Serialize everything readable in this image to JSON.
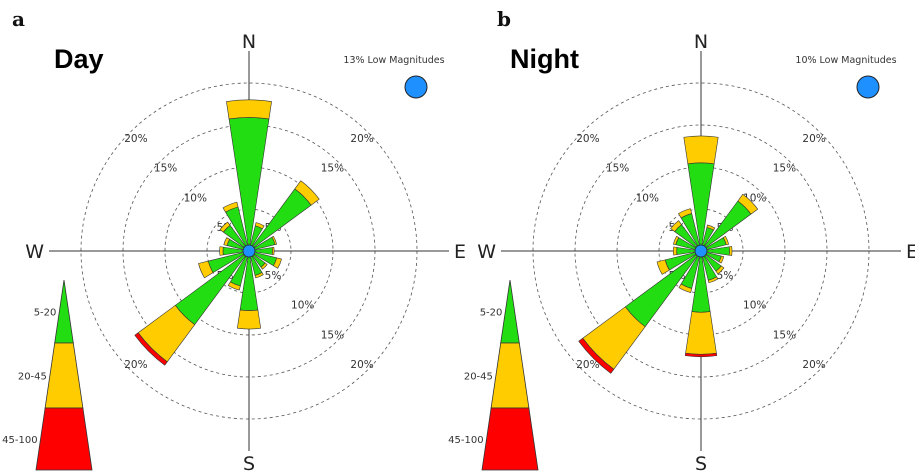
{
  "chart_data": [
    {
      "type": "wind-rose",
      "panel_letter": "a",
      "title": "Day",
      "calm_label": "13% Low Magnitudes",
      "directions": [
        "N",
        "NNE",
        "NE",
        "ENE",
        "E",
        "ESE",
        "SE",
        "SSE",
        "S",
        "SSW",
        "SW",
        "WSW",
        "W",
        "WNW",
        "NW",
        "NNW"
      ],
      "compass_labels": {
        "N": "N",
        "E": "E",
        "S": "S",
        "W": "W"
      },
      "rings": [
        5,
        10,
        15,
        20
      ],
      "ring_label_format": "%",
      "bins": [
        {
          "label": "5-20",
          "color": "#22dd11"
        },
        {
          "label": "20-45",
          "color": "#ffcc00"
        },
        {
          "label": "45-100",
          "color": "#ff0000"
        }
      ],
      "frequencies": [
        [
          15.3,
          2.1,
          0.0
        ],
        [
          2.5,
          0.4,
          0.0
        ],
        [
          8.6,
          1.2,
          0.0
        ],
        [
          2.6,
          0.2,
          0.0
        ],
        [
          2.2,
          0.2,
          0.0
        ],
        [
          2.8,
          0.6,
          0.0
        ],
        [
          1.8,
          0.3,
          0.0
        ],
        [
          2.4,
          0.3,
          0.0
        ],
        [
          6.5,
          2.2,
          0.0
        ],
        [
          3.7,
          0.5,
          0.0
        ],
        [
          10.3,
          5.5,
          0.5
        ],
        [
          4.4,
          1.2,
          0.0
        ],
        [
          2.5,
          0.4,
          0.0
        ],
        [
          2.1,
          0.4,
          0.0
        ],
        [
          3.2,
          0.5,
          0.0
        ],
        [
          4.8,
          0.6,
          0.0
        ]
      ]
    },
    {
      "type": "wind-rose",
      "panel_letter": "b",
      "title": "Night",
      "calm_label": "10% Low Magnitudes",
      "directions": [
        "N",
        "NNE",
        "NE",
        "ENE",
        "E",
        "ESE",
        "SE",
        "SSE",
        "S",
        "SSW",
        "SW",
        "WSW",
        "W",
        "WNW",
        "NW",
        "NNW"
      ],
      "compass_labels": {
        "N": "N",
        "E": "E",
        "S": "S",
        "W": "W"
      },
      "rings": [
        5,
        10,
        15,
        20
      ],
      "ring_label_format": "%",
      "bins": [
        {
          "label": "5-20",
          "color": "#22dd11"
        },
        {
          "label": "20-45",
          "color": "#ffcc00"
        },
        {
          "label": "45-100",
          "color": "#ff0000"
        }
      ],
      "frequencies": [
        [
          9.9,
          3.2,
          0.0
        ],
        [
          2.3,
          0.3,
          0.0
        ],
        [
          6.8,
          1.0,
          0.0
        ],
        [
          2.5,
          0.3,
          0.0
        ],
        [
          2.8,
          0.3,
          0.0
        ],
        [
          1.9,
          0.3,
          0.0
        ],
        [
          2.4,
          0.4,
          0.0
        ],
        [
          3.0,
          0.3,
          0.0
        ],
        [
          6.7,
          5.0,
          0.3
        ],
        [
          4.0,
          0.5,
          0.0
        ],
        [
          10.6,
          6.3,
          0.6
        ],
        [
          3.8,
          1.0,
          0.0
        ],
        [
          2.3,
          0.4,
          0.0
        ],
        [
          2.5,
          0.3,
          0.0
        ],
        [
          3.3,
          0.6,
          0.0
        ],
        [
          4.0,
          0.6,
          0.0
        ]
      ]
    }
  ]
}
